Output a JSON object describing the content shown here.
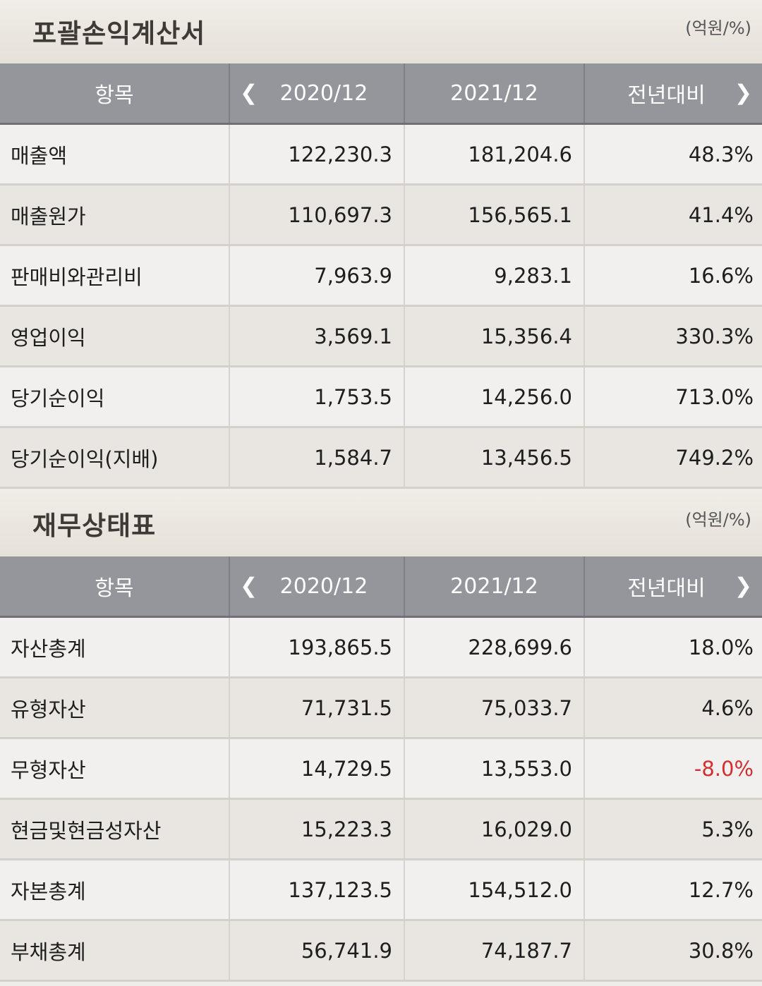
{
  "income": {
    "title": "포괄손익계산서",
    "unit": "(억원/%)",
    "headers": {
      "item": "항목",
      "col1": "2020/12",
      "col2": "2021/12",
      "col3": "전년대비"
    },
    "rows": [
      {
        "label": "매출액",
        "v1": "122,230.3",
        "v2": "181,204.6",
        "v3": "48.3%"
      },
      {
        "label": "매출원가",
        "v1": "110,697.3",
        "v2": "156,565.1",
        "v3": "41.4%"
      },
      {
        "label": "판매비와관리비",
        "v1": "7,963.9",
        "v2": "9,283.1",
        "v3": "16.6%"
      },
      {
        "label": "영업이익",
        "v1": "3,569.1",
        "v2": "15,356.4",
        "v3": "330.3%"
      },
      {
        "label": "당기순이익",
        "v1": "1,753.5",
        "v2": "14,256.0",
        "v3": "713.0%"
      },
      {
        "label": "당기순이익(지배)",
        "v1": "1,584.7",
        "v2": "13,456.5",
        "v3": "749.2%"
      }
    ]
  },
  "balance": {
    "title": "재무상태표",
    "unit": "(억원/%)",
    "headers": {
      "item": "항목",
      "col1": "2020/12",
      "col2": "2021/12",
      "col3": "전년대비"
    },
    "rows": [
      {
        "label": "자산총계",
        "v1": "193,865.5",
        "v2": "228,699.6",
        "v3": "18.0%"
      },
      {
        "label": "유형자산",
        "v1": "71,731.5",
        "v2": "75,033.7",
        "v3": "4.6%"
      },
      {
        "label": "무형자산",
        "v1": "14,729.5",
        "v2": "13,553.0",
        "v3": "-8.0%"
      },
      {
        "label": "현금및현금성자산",
        "v1": "15,223.3",
        "v2": "16,029.0",
        "v3": "5.3%"
      },
      {
        "label": "자본총계",
        "v1": "137,123.5",
        "v2": "154,512.0",
        "v3": "12.7%"
      },
      {
        "label": "부채총계",
        "v1": "56,741.9",
        "v2": "74,187.7",
        "v3": "30.8%"
      }
    ]
  },
  "colors": {
    "header_bg": "#94969b",
    "negative": "#d32f2f",
    "title": "#3e3a36"
  },
  "icons": {
    "prev": "chevron-left-icon",
    "next": "chevron-right-icon"
  }
}
